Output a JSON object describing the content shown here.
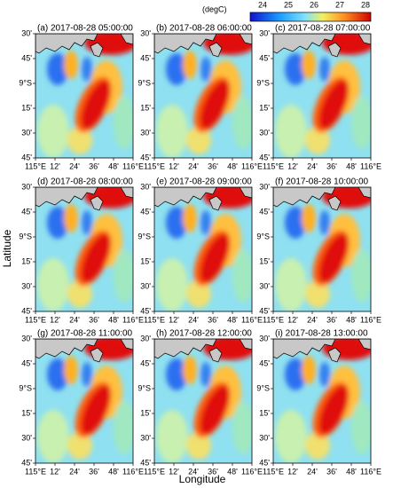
{
  "colorbar": {
    "label": "(degC)",
    "ticks": [
      24,
      25,
      26,
      27,
      28
    ]
  },
  "panels": [
    {
      "title": "(a) 2017-08-28 05:00:00"
    },
    {
      "title": "(b) 2017-08-28 06:00:00"
    },
    {
      "title": "(c) 2017-08-28 07:00:00"
    },
    {
      "title": "(d) 2017-08-28 08:00:00"
    },
    {
      "title": "(e) 2017-08-28 09:00:00"
    },
    {
      "title": "(f) 2017-08-28 10:00:00"
    },
    {
      "title": "(g) 2017-08-28 11:00:00"
    },
    {
      "title": "(h) 2017-08-28 12:00:00"
    },
    {
      "title": "(i) 2017-08-28 13:00:00"
    }
  ],
  "lat_ticks": [
    "30'",
    "45'",
    "9°S",
    "15'",
    "30'",
    "45'"
  ],
  "lon_ticks": [
    "115°E",
    "12'",
    "24'",
    "36'",
    "48'",
    "116°E"
  ],
  "ylabel": "Latitude",
  "xlabel": "Longitude"
}
